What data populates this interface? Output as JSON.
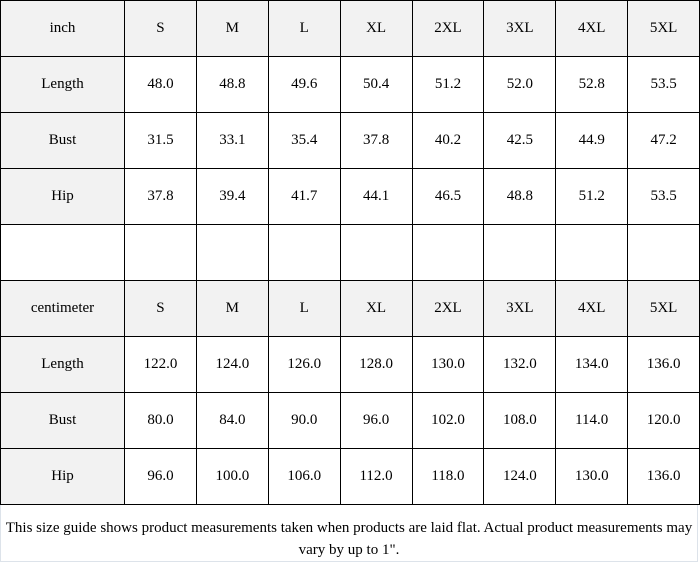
{
  "tables": [
    {
      "unit": "inch",
      "sizes": [
        "S",
        "M",
        "L",
        "XL",
        "2XL",
        "3XL",
        "4XL",
        "5XL"
      ],
      "rows": [
        {
          "label": "Length",
          "values": [
            "48.0",
            "48.8",
            "49.6",
            "50.4",
            "51.2",
            "52.0",
            "52.8",
            "53.5"
          ]
        },
        {
          "label": "Bust",
          "values": [
            "31.5",
            "33.1",
            "35.4",
            "37.8",
            "40.2",
            "42.5",
            "44.9",
            "47.2"
          ]
        },
        {
          "label": "Hip",
          "values": [
            "37.8",
            "39.4",
            "41.7",
            "44.1",
            "46.5",
            "48.8",
            "51.2",
            "53.5"
          ]
        }
      ]
    },
    {
      "unit": "centimeter",
      "sizes": [
        "S",
        "M",
        "L",
        "XL",
        "2XL",
        "3XL",
        "4XL",
        "5XL"
      ],
      "rows": [
        {
          "label": "Length",
          "values": [
            "122.0",
            "124.0",
            "126.0",
            "128.0",
            "130.0",
            "132.0",
            "134.0",
            "136.0"
          ]
        },
        {
          "label": "Bust",
          "values": [
            "80.0",
            "84.0",
            "90.0",
            "96.0",
            "102.0",
            "108.0",
            "114.0",
            "120.0"
          ]
        },
        {
          "label": "Hip",
          "values": [
            "96.0",
            "100.0",
            "106.0",
            "112.0",
            "118.0",
            "124.0",
            "130.0",
            "136.0"
          ]
        }
      ]
    }
  ],
  "note": "This size guide shows product measurements taken when products are laid flat. Actual product measurements may vary by up to 1\".",
  "colors": {
    "header_bg": "#f2f2f2",
    "border": "#000000"
  }
}
